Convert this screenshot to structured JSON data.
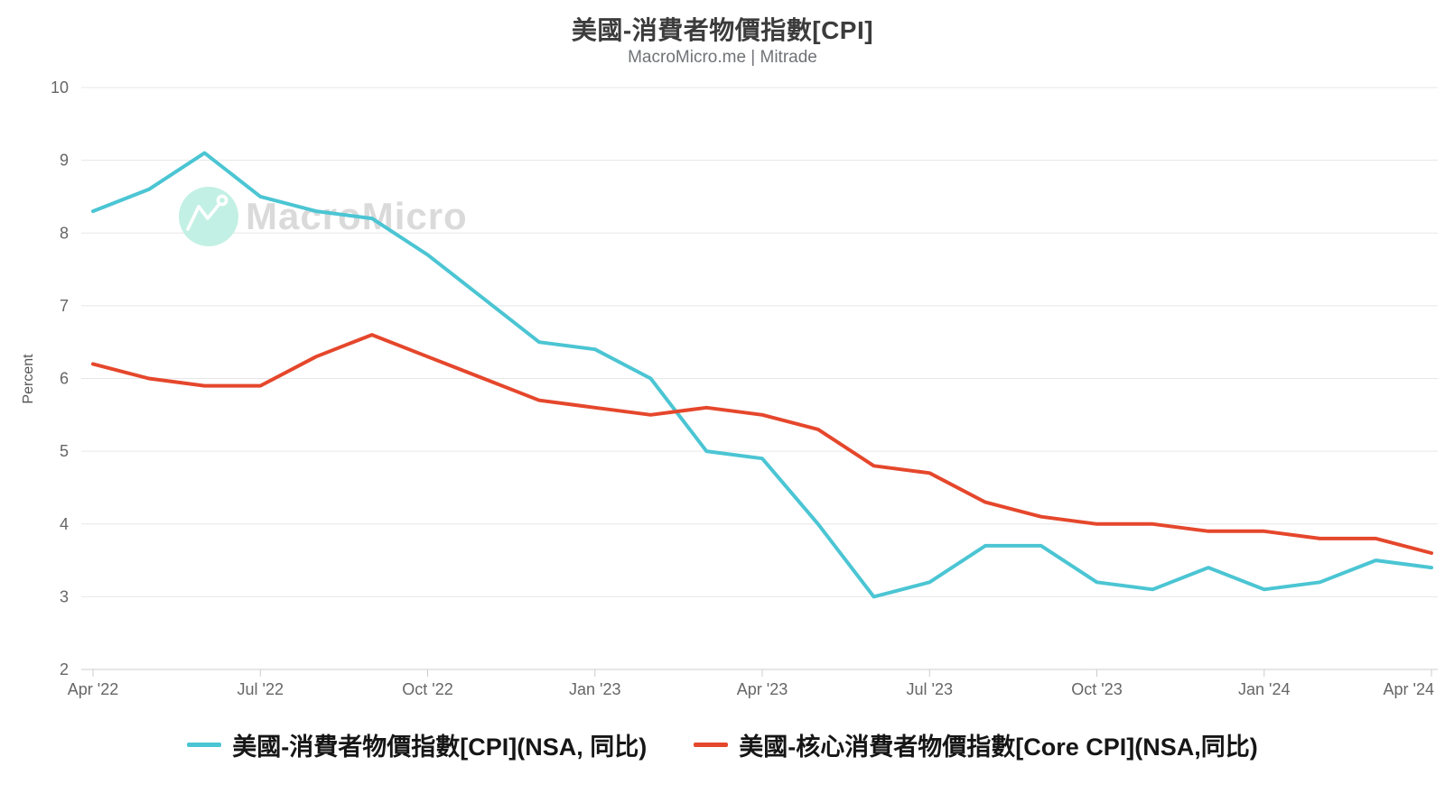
{
  "header": {
    "title": "美國-消費者物價指數[CPI]",
    "subtitle": "MacroMicro.me | Mitrade"
  },
  "watermark": {
    "logo_text": "MacroMicro",
    "circle_color": "#c3f0e4",
    "glyph": "trend-line-with-end-dot"
  },
  "chart_data": {
    "type": "line",
    "title": "美國-消費者物價指數[CPI]",
    "subtitle": "MacroMicro.me | Mitrade",
    "xlabel": "",
    "ylabel": "Percent",
    "ylim": [
      2,
      10
    ],
    "y_ticks": [
      2,
      3,
      4,
      5,
      6,
      7,
      8,
      9,
      10
    ],
    "grid": "horizontal",
    "legend_position": "bottom",
    "x": [
      "Apr 2022",
      "May 2022",
      "Jun 2022",
      "Jul 2022",
      "Aug 2022",
      "Sep 2022",
      "Oct 2022",
      "Nov 2022",
      "Dec 2022",
      "Jan 2023",
      "Feb 2023",
      "Mar 2023",
      "Apr 2023",
      "May 2023",
      "Jun 2023",
      "Jul 2023",
      "Aug 2023",
      "Sep 2023",
      "Oct 2023",
      "Nov 2023",
      "Dec 2023",
      "Jan 2024",
      "Feb 2024",
      "Mar 2024",
      "Apr 2024"
    ],
    "x_tick_every": 3,
    "x_tick_labels": [
      "Apr '22",
      "Jul '22",
      "Oct '22",
      "Jan '23",
      "Apr '23",
      "Jul '23",
      "Oct '23",
      "Jan '24",
      "Apr '24"
    ],
    "series": [
      {
        "name": "美國-消費者物價指數[CPI](NSA, 同比)",
        "color": "#4bc5d3",
        "values": [
          8.3,
          8.6,
          9.1,
          8.5,
          8.3,
          8.2,
          7.7,
          7.1,
          6.5,
          6.4,
          6.0,
          5.0,
          4.9,
          4.0,
          3.0,
          3.2,
          3.7,
          3.7,
          3.2,
          3.1,
          3.4,
          3.1,
          3.2,
          3.5,
          3.4
        ]
      },
      {
        "name": "美國-核心消費者物價指數[Core CPI](NSA,同比)",
        "color": "#e5472c",
        "values": [
          6.2,
          6.0,
          5.9,
          5.9,
          6.3,
          6.6,
          6.3,
          6.0,
          5.7,
          5.6,
          5.5,
          5.6,
          5.5,
          5.3,
          4.8,
          4.7,
          4.3,
          4.1,
          4.0,
          4.0,
          3.9,
          3.9,
          3.8,
          3.8,
          3.6
        ]
      }
    ]
  }
}
